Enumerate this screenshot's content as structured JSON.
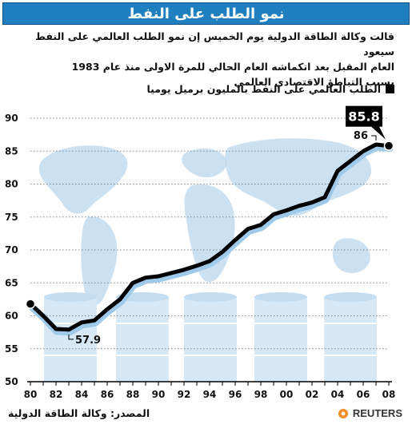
{
  "header": {
    "title": "نمو الطلب على النفط"
  },
  "subtitle": {
    "line1": "قالت وكالة الطاقة الدولية يوم الخميس إن نمو الطلب العالمي على النفط سيعود",
    "line2": "العام المقبل بعد انكماشه العام الحالي للمرة الاولى منذ عام 1983",
    "line3": "بسبب التباطؤ الاقتصادي العالمي"
  },
  "legend": {
    "label": "الطلب العالمي على النفط بالمليون برميل يوميا",
    "color": "#000000"
  },
  "footer": {
    "source": "المصدر: وكالة الطاقة الدولية",
    "brand": "REUTERS"
  },
  "colors": {
    "title_bg": "#1f7fbf",
    "line": "#000000",
    "line_shadow": "#9ec9e8",
    "map": "#b9d6ec",
    "barrels": "#d6e8f6"
  },
  "chart_data": {
    "type": "line",
    "title": "",
    "xlabel": "",
    "ylabel": "",
    "x": [
      80,
      81,
      82,
      83,
      84,
      85,
      86,
      87,
      88,
      89,
      90,
      91,
      92,
      93,
      94,
      95,
      96,
      97,
      98,
      99,
      100,
      101,
      102,
      103,
      104,
      105,
      106,
      107,
      108
    ],
    "series": [
      {
        "name": "الطلب العالمي على النفط بالمليون برميل يوميا",
        "values": [
          61.8,
          60.0,
          58.0,
          57.9,
          59.0,
          59.3,
          61.0,
          62.5,
          65.0,
          65.8,
          66.0,
          66.5,
          67.0,
          67.6,
          68.3,
          69.7,
          71.5,
          73.2,
          73.8,
          75.4,
          76.0,
          76.7,
          77.2,
          78.0,
          82.0,
          83.5,
          85.0,
          86.0,
          85.8
        ]
      }
    ],
    "x_ticks": [
      "80",
      "82",
      "84",
      "86",
      "88",
      "90",
      "92",
      "94",
      "96",
      "98",
      "00",
      "02",
      "04",
      "06",
      "08"
    ],
    "y_ticks": [
      50,
      55,
      60,
      65,
      70,
      75,
      80,
      85,
      90
    ],
    "xlim": [
      80,
      108
    ],
    "ylim": [
      50,
      90
    ],
    "grid": true,
    "annotations": [
      {
        "text": "57.9",
        "x": 83,
        "y": 57.9
      },
      {
        "text": "86",
        "x": 107,
        "y": 86.0
      },
      {
        "text": "85.8",
        "x": 108,
        "y": 85.8,
        "boxed": true
      }
    ]
  }
}
